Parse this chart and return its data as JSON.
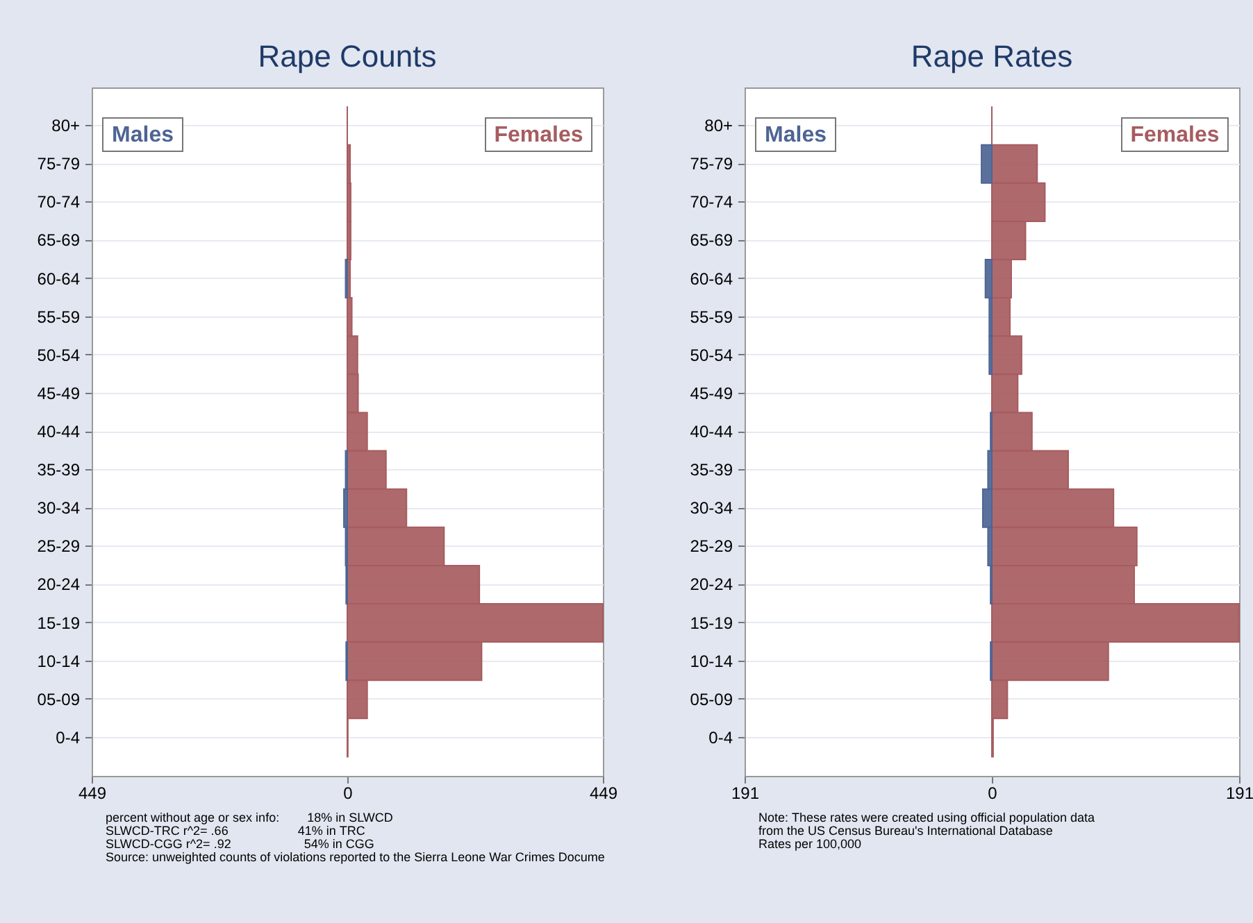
{
  "chart_data": [
    {
      "type": "bar",
      "orientation": "horizontal",
      "title": "Rape Counts",
      "categories": [
        "80+",
        "75-79",
        "70-74",
        "65-69",
        "60-64",
        "55-59",
        "50-54",
        "45-49",
        "40-44",
        "35-39",
        "30-34",
        "25-29",
        "20-24",
        "15-19",
        "10-14",
        "05-09",
        "0-4"
      ],
      "series": [
        {
          "name": "Males",
          "color": "#4e6494",
          "values": [
            0,
            0,
            0,
            0,
            -3,
            0,
            0,
            0,
            0,
            -3,
            -6,
            -3,
            -2,
            0,
            -2,
            0,
            0
          ]
        },
        {
          "name": "Females",
          "color": "#a65c60",
          "values": [
            0,
            5,
            6,
            6,
            5,
            8,
            18,
            19,
            35,
            68,
            104,
            170,
            232,
            449,
            236,
            35,
            1
          ]
        }
      ],
      "xlim": [
        -449,
        449
      ],
      "xticks": [
        {
          "value": -449,
          "label": "449"
        },
        0,
        449
      ],
      "grid": "y",
      "annotations": [
        "percent without age or sex info:        18% in SLWCD",
        "SLWCD-TRC r^2= .66                    41% in TRC",
        "SLWCD-CGG r^2= .92                     54% in CGG",
        "Source: unweighted counts of violations reported to the Sierra Leone War Crimes Docume"
      ]
    },
    {
      "type": "bar",
      "orientation": "horizontal",
      "title": "Rape Rates",
      "categories": [
        "80+",
        "75-79",
        "70-74",
        "65-69",
        "60-64",
        "55-59",
        "50-54",
        "45-49",
        "40-44",
        "35-39",
        "30-34",
        "25-29",
        "20-24",
        "15-19",
        "10-14",
        "05-09",
        "0-4"
      ],
      "series": [
        {
          "name": "Males",
          "color": "#4e6494",
          "values": [
            0,
            -8,
            0,
            0,
            -5,
            -2,
            -2,
            0,
            -1,
            -3,
            -7,
            -3,
            -1,
            0,
            -1,
            0,
            0
          ]
        },
        {
          "name": "Females",
          "color": "#a65c60",
          "values": [
            0,
            35,
            41,
            26,
            15,
            14,
            23,
            20,
            31,
            59,
            94,
            112,
            110,
            191,
            90,
            12,
            1
          ]
        }
      ],
      "xlim": [
        -191,
        191
      ],
      "xticks": [
        {
          "value": -191,
          "label": "191"
        },
        0,
        191
      ],
      "grid": "y",
      "annotations": [
        "Note: These rates were created using official population data",
        "            from the US Census Bureau's International Database",
        "Rates per 100,000"
      ]
    }
  ]
}
